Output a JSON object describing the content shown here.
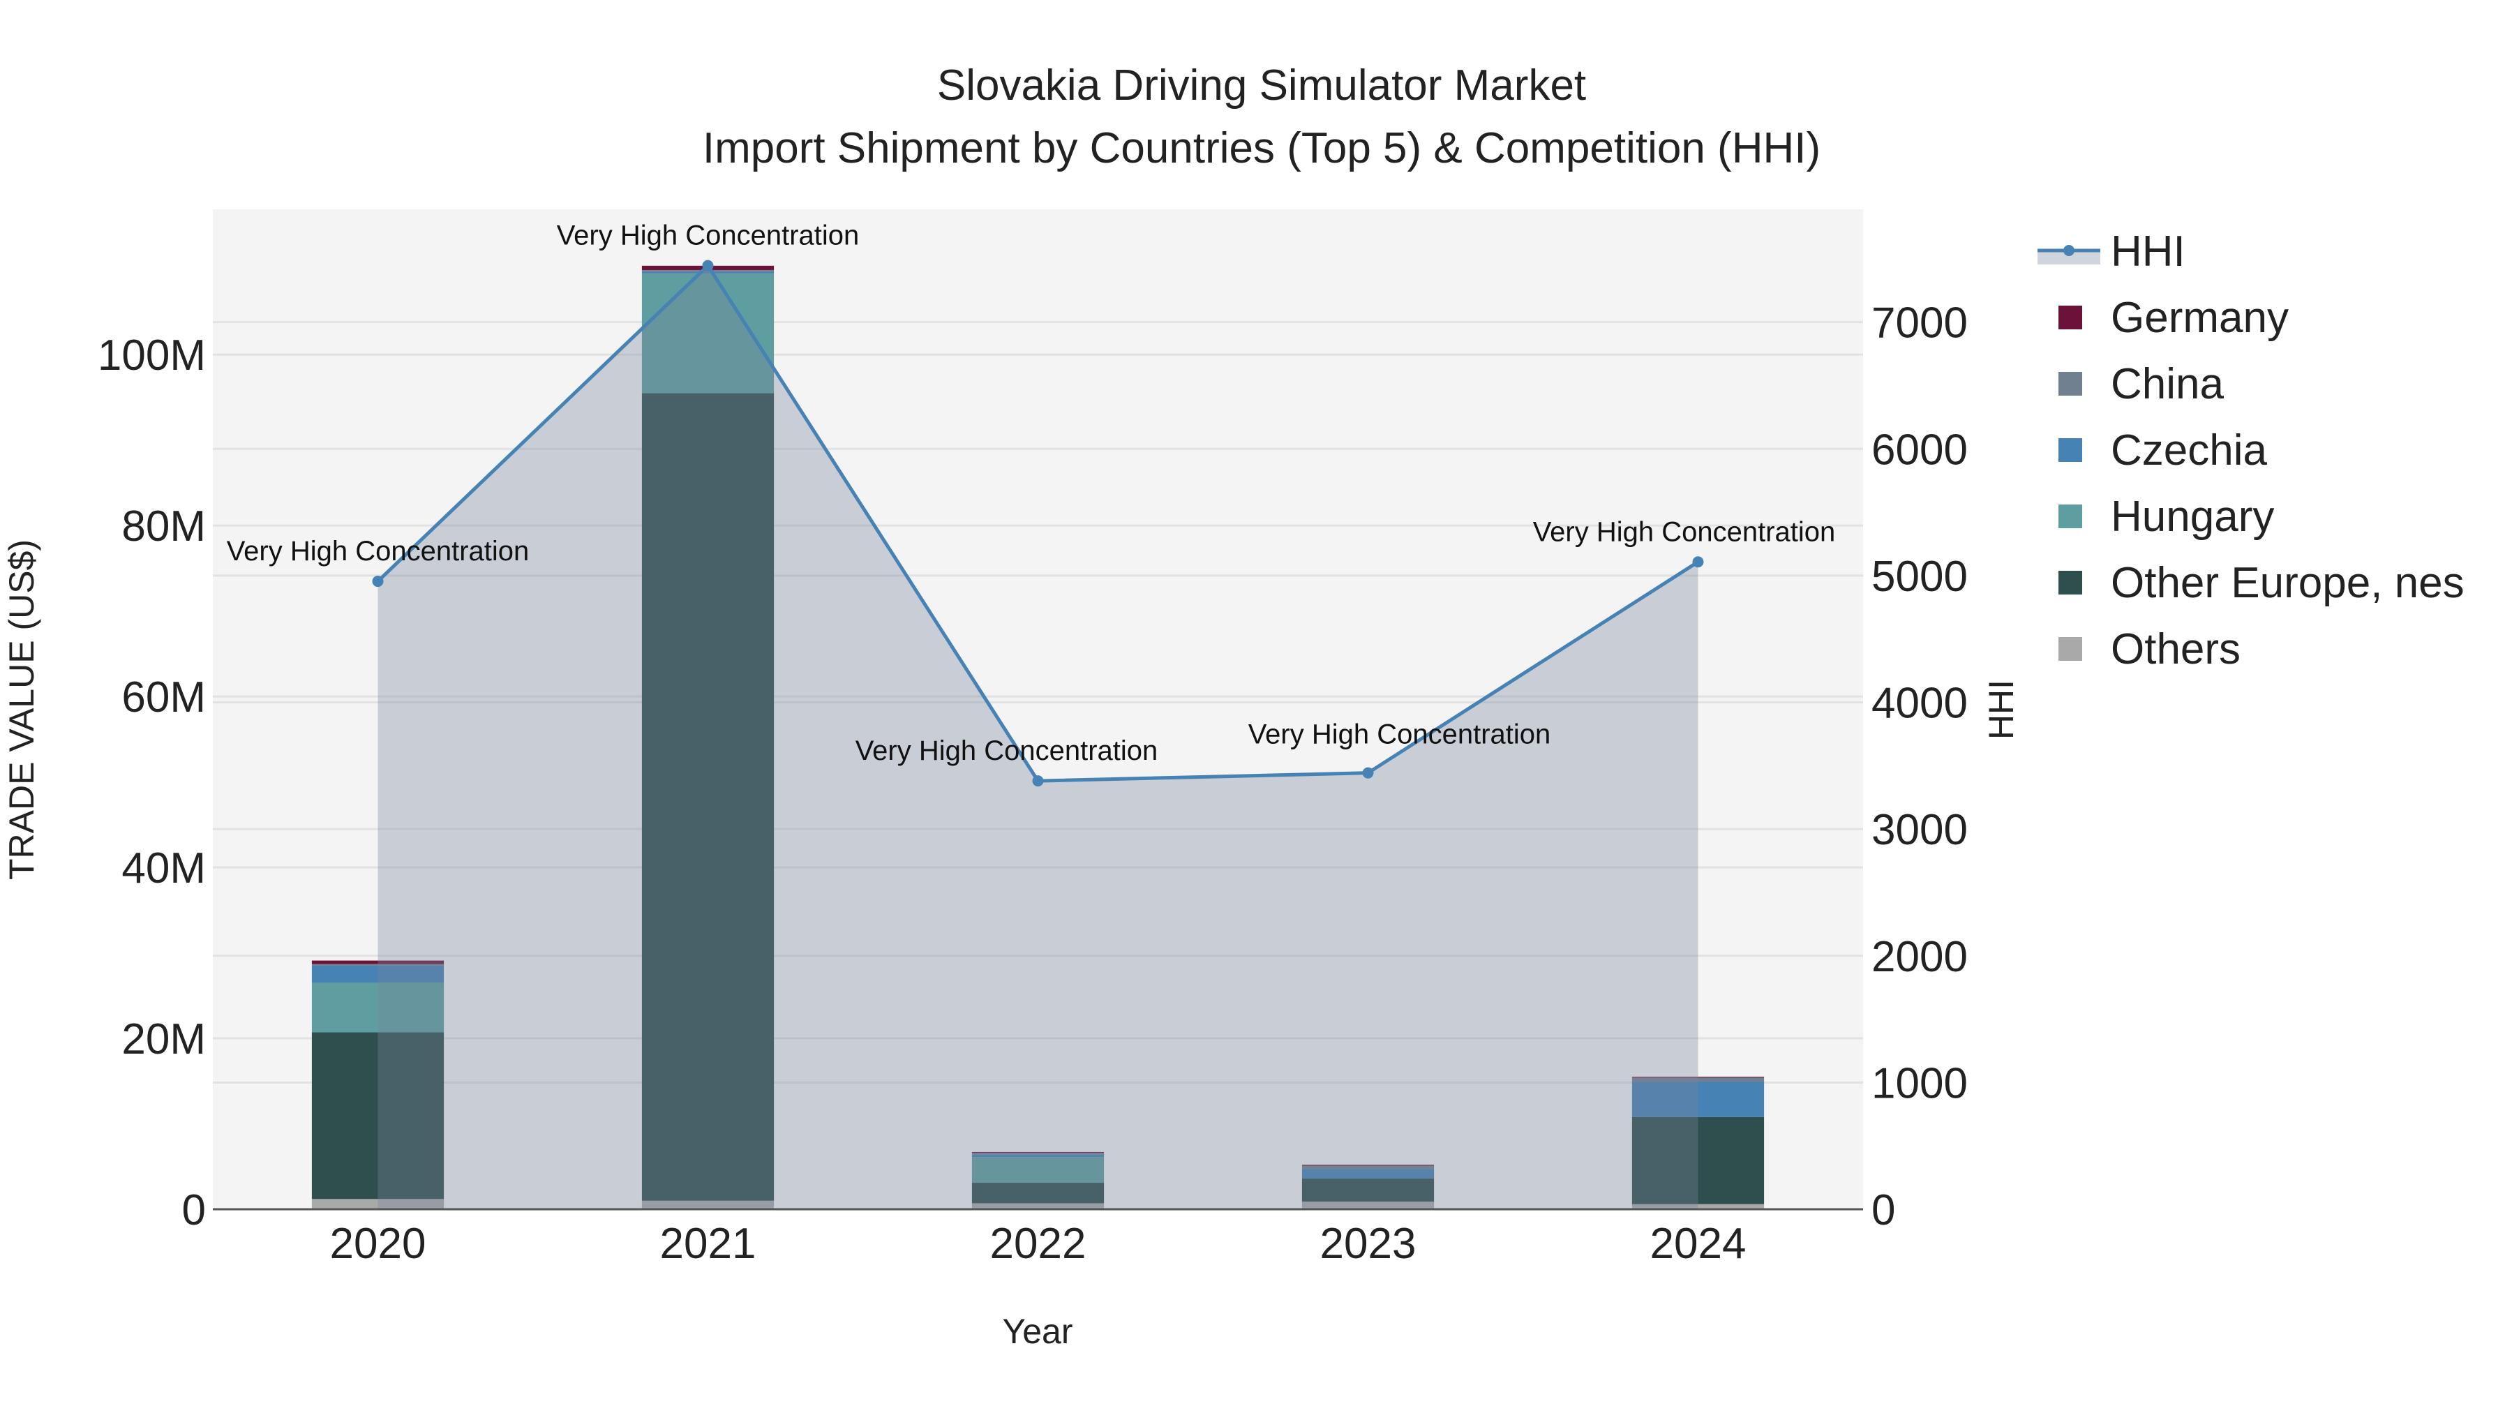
{
  "chart_data": {
    "type": "bar",
    "title": "Slovakia Driving Simulator Market",
    "subtitle": "Import Shipment by Countries (Top 5) & Competition (HHI)",
    "xlabel": "Year",
    "ylabel": "TRADE VALUE (US$)",
    "y2label": "HHI",
    "categories": [
      "2020",
      "2021",
      "2022",
      "2023",
      "2024"
    ],
    "ylim": [
      0,
      117000000
    ],
    "y2lim": [
      0,
      7890
    ],
    "yticks": [
      0,
      20000000,
      40000000,
      60000000,
      80000000,
      100000000
    ],
    "ytick_labels": [
      "0",
      "20M",
      "40M",
      "60M",
      "80M",
      "100M"
    ],
    "y2ticks": [
      0,
      1000,
      2000,
      3000,
      4000,
      5000,
      6000,
      7000
    ],
    "y2tick_labels": [
      "0",
      "1000",
      "2000",
      "3000",
      "4000",
      "5000",
      "6000",
      "7000"
    ],
    "series": [
      {
        "name": "Others",
        "color": "#a9a9a9",
        "values": [
          1200000,
          1000000,
          700000,
          900000,
          600000
        ]
      },
      {
        "name": "Other Europe, nes",
        "color": "#2f4f4f",
        "values": [
          19500000,
          94500000,
          2400000,
          2700000,
          10200000
        ]
      },
      {
        "name": "Hungary",
        "color": "#5f9ea0",
        "values": [
          5800000,
          14000000,
          3000000,
          0,
          0
        ]
      },
      {
        "name": "Czechia",
        "color": "#4682b4",
        "values": [
          2000000,
          200000,
          300000,
          1100000,
          4100000
        ]
      },
      {
        "name": "China",
        "color": "#708090",
        "values": [
          200000,
          200000,
          200000,
          400000,
          500000
        ]
      },
      {
        "name": "Germany",
        "color": "#6b1238",
        "values": [
          400000,
          500000,
          100000,
          100000,
          100000
        ]
      }
    ],
    "hhi": {
      "name": "HHI",
      "color": "#4682b4",
      "values": [
        4955,
        7446,
        3380,
        3443,
        5108
      ],
      "annotations": [
        "Very High Concentration",
        "Very High Concentration",
        "Very High Concentration",
        "Very High Concentration",
        "Very High Concentration"
      ]
    },
    "legend": [
      "HHI",
      "Germany",
      "China",
      "Czechia",
      "Hungary",
      "Other Europe, nes",
      "Others"
    ],
    "legend_position": "right",
    "grid": true
  }
}
